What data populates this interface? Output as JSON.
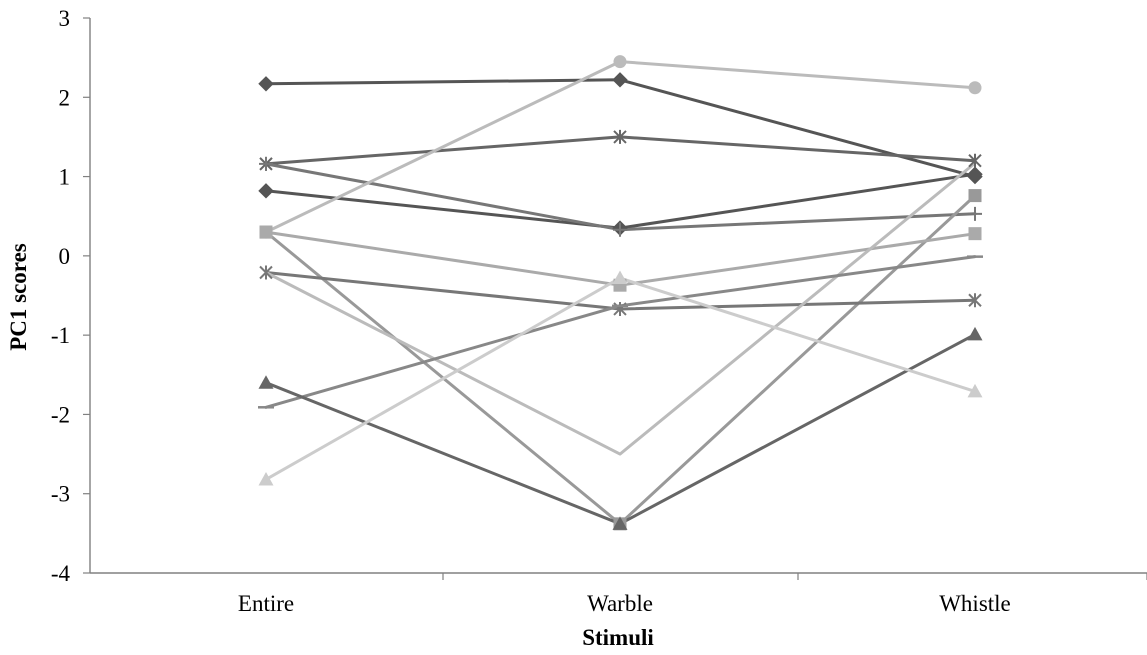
{
  "chart_data": {
    "type": "line",
    "title": "",
    "xlabel": "Stimuli",
    "ylabel": "PC1 scores",
    "categories": [
      "Entire",
      "Warble",
      "Whistle"
    ],
    "ylim": [
      -4,
      3
    ],
    "yticks": [
      3,
      2,
      1,
      0,
      -1,
      -2,
      -3,
      -4
    ],
    "ytick_labels": [
      "3",
      "2",
      "1",
      "0",
      "-1",
      "-2",
      "-3",
      "-4"
    ],
    "grid": false,
    "legend": "none",
    "series": [
      {
        "values": [
          2.17,
          2.22,
          1.0
        ],
        "color": "#555555",
        "marker": "diamond"
      },
      {
        "values": [
          0.82,
          0.35,
          1.03
        ],
        "color": "#555555",
        "marker": "diamond"
      },
      {
        "values": [
          1.16,
          1.5,
          1.2
        ],
        "color": "#666666",
        "marker": "asterisk"
      },
      {
        "values": [
          1.16,
          0.33,
          0.53
        ],
        "color": "#777777",
        "marker": "plus"
      },
      {
        "values": [
          0.3,
          2.45,
          2.12
        ],
        "color": "#bbbbbb",
        "marker": "circle"
      },
      {
        "values": [
          0.3,
          -3.38,
          0.76
        ],
        "color": "#999999",
        "marker": "square"
      },
      {
        "values": [
          0.3,
          -0.37,
          0.28
        ],
        "color": "#aaaaaa",
        "marker": "square"
      },
      {
        "values": [
          -0.21,
          -0.67,
          -0.56
        ],
        "color": "#777777",
        "marker": "asterisk"
      },
      {
        "values": [
          -0.21,
          -2.5,
          1.17
        ],
        "color": "#bbbbbb",
        "marker": "none"
      },
      {
        "values": [
          -1.91,
          -0.63,
          -0.01
        ],
        "color": "#888888",
        "marker": "dash"
      },
      {
        "values": [
          -1.6,
          -3.38,
          -0.99
        ],
        "color": "#666666",
        "marker": "triangle"
      },
      {
        "values": [
          -2.82,
          -0.28,
          -1.71
        ],
        "color": "#cccccc",
        "marker": "triangle"
      }
    ]
  }
}
